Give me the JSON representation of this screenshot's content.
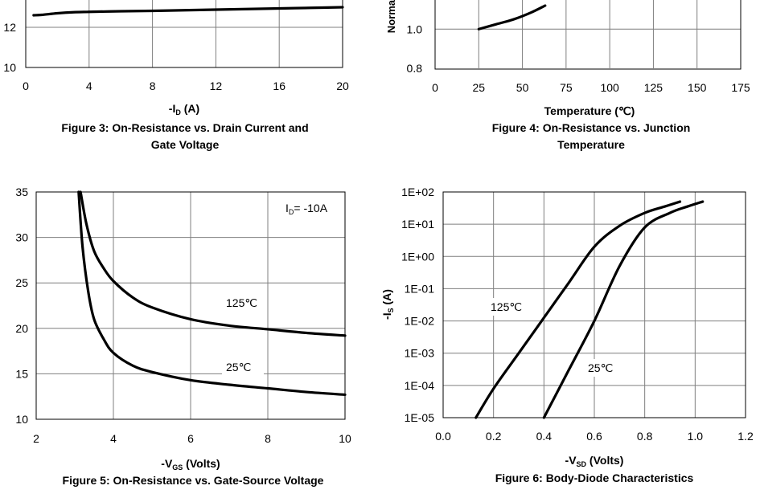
{
  "chart_data": [
    {
      "id": "fig3",
      "type": "line",
      "caption_lines": [
        "Figure 3: On-Resistance vs. Drain Current and",
        "Gate Voltage"
      ],
      "xlabel_pre": "-I",
      "xlabel_sub": "D",
      "xlabel_post": " (A)",
      "xticks": [
        "0",
        "4",
        "8",
        "12",
        "16",
        "20"
      ],
      "xlim": [
        0,
        20
      ],
      "yticks": [
        "12",
        "10"
      ],
      "ylim": [
        10,
        13.2
      ],
      "grid": true,
      "series": [
        {
          "x": [
            0.5,
            1,
            2,
            3,
            4,
            6,
            8,
            10,
            12,
            14,
            16,
            18,
            20
          ],
          "y": [
            12.6,
            12.62,
            12.7,
            12.75,
            12.77,
            12.8,
            12.82,
            12.85,
            12.88,
            12.91,
            12.94,
            12.97,
            13.0
          ]
        }
      ]
    },
    {
      "id": "fig4",
      "type": "line",
      "caption_lines": [
        "Figure 4: On-Resistance vs. Junction",
        "Temperature"
      ],
      "xlabel": "Temperature (℃)",
      "ylabel_fragment": "Norma",
      "xticks": [
        "0",
        "25",
        "50",
        "75",
        "100",
        "125",
        "150",
        "175"
      ],
      "xlim": [
        0,
        175
      ],
      "yticks": [
        "1.0",
        "0.8"
      ],
      "ylim": [
        0.8,
        1.18
      ],
      "grid": true,
      "series": [
        {
          "x": [
            25,
            35,
            45,
            55,
            63
          ],
          "y": [
            1.0,
            1.025,
            1.05,
            1.085,
            1.12
          ]
        }
      ]
    },
    {
      "id": "fig5",
      "type": "line",
      "caption_lines": [
        "Figure 5: On-Resistance vs. Gate-Source Voltage"
      ],
      "xlabel_pre": "-V",
      "xlabel_sub": "GS",
      "xlabel_post": " (Volts)",
      "xticks": [
        "2",
        "4",
        "6",
        "8",
        "10"
      ],
      "xlim": [
        2,
        10
      ],
      "yticks": [
        "35",
        "30",
        "25",
        "20",
        "15",
        "10"
      ],
      "ylim": [
        10,
        35
      ],
      "grid": true,
      "annotation_pre": "I",
      "annotation_sub": "D",
      "annotation_post": "= -10A",
      "series": [
        {
          "name": "125℃",
          "x": [
            3.15,
            3.3,
            3.5,
            3.75,
            4.0,
            4.5,
            5.0,
            6.0,
            7.0,
            8.0,
            9.0,
            10.0
          ],
          "y": [
            35,
            31.5,
            28.5,
            26.6,
            25.2,
            23.4,
            22.3,
            21.0,
            20.3,
            19.9,
            19.5,
            19.2
          ]
        },
        {
          "name": "25℃",
          "x": [
            3.1,
            3.2,
            3.35,
            3.5,
            3.75,
            4.0,
            4.5,
            5.0,
            6.0,
            7.0,
            8.0,
            9.0,
            10.0
          ],
          "y": [
            35,
            29,
            24,
            21,
            18.8,
            17.3,
            15.9,
            15.2,
            14.3,
            13.8,
            13.4,
            13.0,
            12.7
          ]
        }
      ]
    },
    {
      "id": "fig6",
      "type": "line",
      "caption_lines": [
        "Figure 6: Body-Diode Characteristics"
      ],
      "xlabel_pre": "-V",
      "xlabel_sub": "SD",
      "xlabel_post": " (Volts)",
      "ylabel_pre": "-I",
      "ylabel_sub": "S",
      "ylabel_post": " (A)",
      "xticks": [
        "0.0",
        "0.2",
        "0.4",
        "0.6",
        "0.8",
        "1.0",
        "1.2"
      ],
      "xlim": [
        0,
        1.2
      ],
      "yticks": [
        "1E+02",
        "1E+01",
        "1E+00",
        "1E-01",
        "1E-02",
        "1E-03",
        "1E-04",
        "1E-05"
      ],
      "ylim_log10": [
        -5,
        2
      ],
      "y_scale": "log",
      "grid": true,
      "series": [
        {
          "name": "125℃",
          "x": [
            0.13,
            0.2,
            0.3,
            0.4,
            0.5,
            0.6,
            0.7,
            0.8,
            0.88,
            0.94
          ],
          "y_log10": [
            -5.0,
            -4.1,
            -3.0,
            -1.9,
            -0.8,
            0.3,
            0.95,
            1.35,
            1.55,
            1.7
          ]
        },
        {
          "name": "25℃",
          "x": [
            0.4,
            0.5,
            0.6,
            0.7,
            0.8,
            0.9,
            0.97,
            1.03
          ],
          "y_log10": [
            -5.0,
            -3.5,
            -2.0,
            -0.3,
            0.9,
            1.35,
            1.55,
            1.7
          ]
        }
      ]
    }
  ]
}
